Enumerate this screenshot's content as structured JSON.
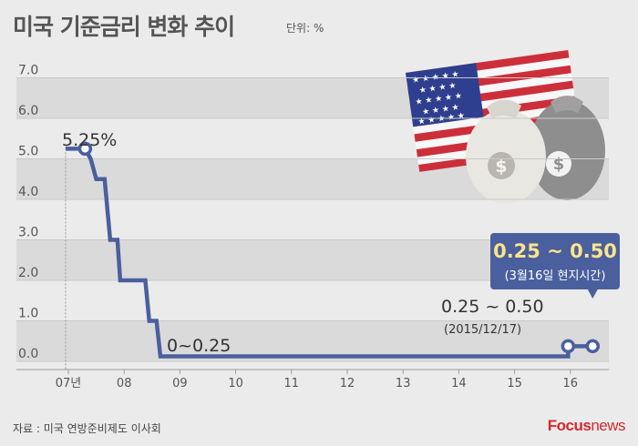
{
  "header": {
    "title": "미국 기준금리 변화 추이",
    "unit": "단위: %"
  },
  "footer": {
    "source": "자료 : 미국 연방준비제도 이사회",
    "logo_brand": "Focus",
    "logo_news": "news"
  },
  "colors": {
    "line": "#4a5f9e",
    "band": "#dadada",
    "callout_box": "#4a5f9e",
    "callout_text": "#fde48a"
  },
  "chart_data": {
    "type": "line",
    "title": "미국 기준금리 변화 추이",
    "unit": "단위: %",
    "ylim": [
      0,
      7
    ],
    "y_ticks": [
      "0.0",
      "1.0",
      "2.0",
      "3.0",
      "4.0",
      "5.0",
      "6.0",
      "7.0"
    ],
    "x_ticks": [
      {
        "label": "07년",
        "x": 2007
      },
      {
        "label": "08",
        "x": 2008
      },
      {
        "label": "09",
        "x": 2009
      },
      {
        "label": "10",
        "x": 2010
      },
      {
        "label": "11",
        "x": 2011
      },
      {
        "label": "12",
        "x": 2012
      },
      {
        "label": "13",
        "x": 2013
      },
      {
        "label": "14",
        "x": 2014
      },
      {
        "label": "15",
        "x": 2015
      },
      {
        "label": "16",
        "x": 2016
      }
    ],
    "series": [
      {
        "points": [
          [
            2006.95,
            5.25
          ],
          [
            2007.3,
            5.25
          ],
          [
            2007.4,
            5.0
          ],
          [
            2007.5,
            4.5
          ],
          [
            2007.65,
            4.5
          ],
          [
            2007.75,
            3.0
          ],
          [
            2007.88,
            3.0
          ],
          [
            2007.93,
            2.0
          ],
          [
            2008.38,
            2.0
          ],
          [
            2008.45,
            1.0
          ],
          [
            2008.58,
            1.0
          ],
          [
            2008.65,
            0.125
          ],
          [
            2015.96,
            0.125
          ],
          [
            2015.96,
            0.375
          ],
          [
            2016.4,
            0.375
          ]
        ],
        "highlighted": [
          {
            "x": 2007.3,
            "y": 5.25
          },
          {
            "x": 2015.96,
            "y": 0.375
          },
          {
            "x": 2016.4,
            "y": 0.375
          }
        ]
      }
    ],
    "annotations": {
      "peak": "5.25%",
      "zero_range": "0~0.25",
      "dec2015_rate": "0.25 ~ 0.50",
      "dec2015_date": "(2015/12/17)",
      "mar2016_rate": "0.25 ~ 0.50",
      "mar2016_date": "(3월16일 현지시간)"
    }
  }
}
